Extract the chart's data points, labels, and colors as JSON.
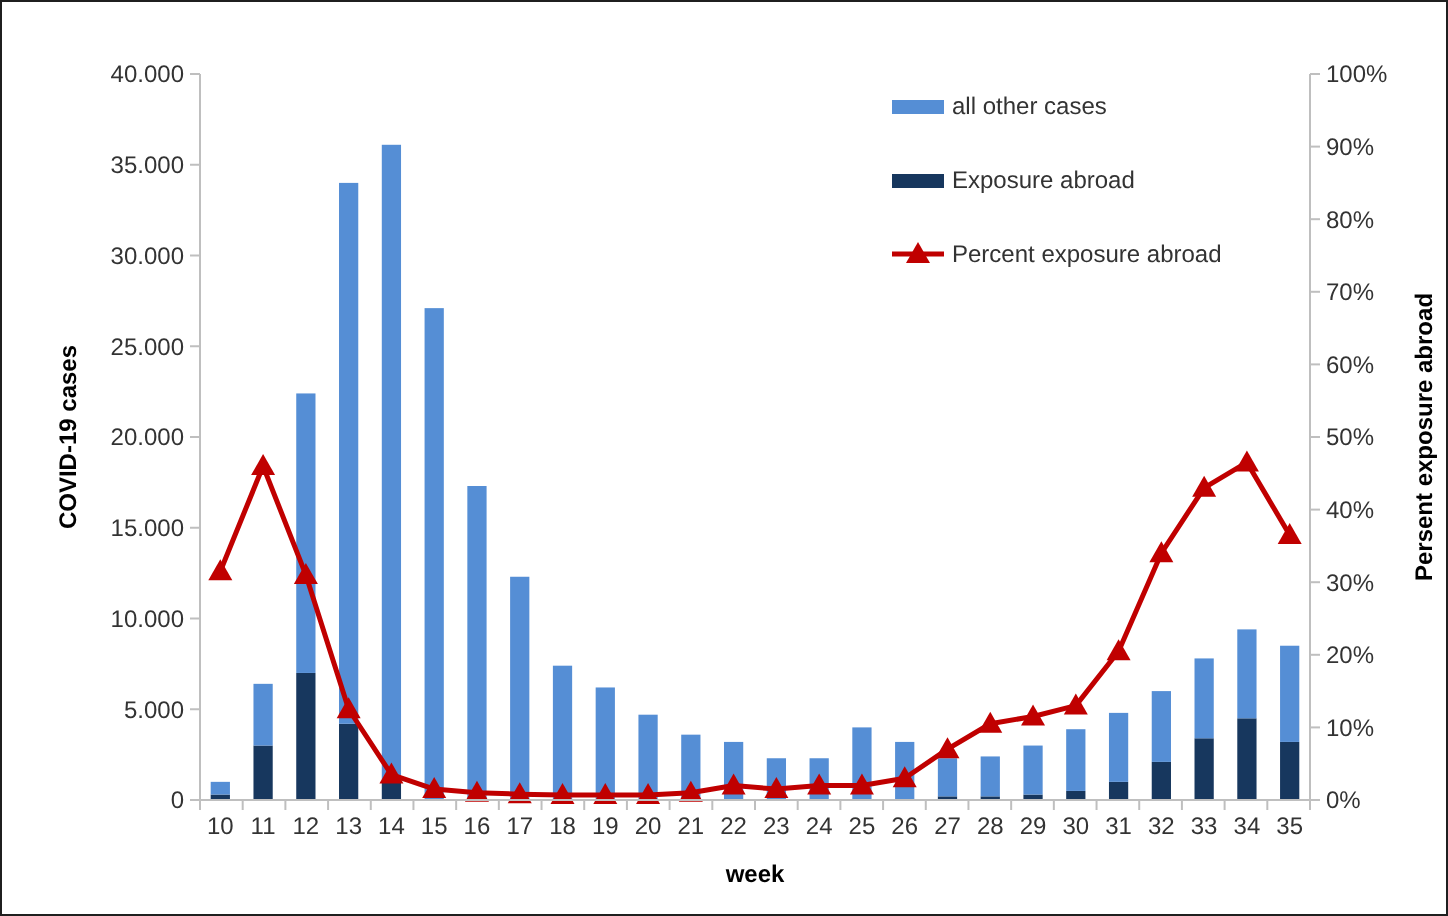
{
  "chart_data": {
    "type": "bar",
    "stacked": true,
    "xlabel": "week",
    "ylabel": "COVID-19 cases",
    "y2label": "Persent exposure abroad",
    "categories": [
      "10",
      "11",
      "12",
      "13",
      "14",
      "15",
      "16",
      "17",
      "18",
      "19",
      "20",
      "21",
      "22",
      "23",
      "24",
      "25",
      "26",
      "27",
      "28",
      "29",
      "30",
      "31",
      "32",
      "33",
      "34",
      "35"
    ],
    "series": [
      {
        "name": "Exposure abroad",
        "color": "#17375e",
        "values": [
          300,
          3000,
          7000,
          4200,
          1000,
          null,
          null,
          null,
          null,
          null,
          null,
          null,
          null,
          null,
          null,
          null,
          null,
          200,
          200,
          300,
          500,
          1000,
          2100,
          3400,
          4500,
          3200
        ]
      },
      {
        "name": "all other cases",
        "color": "#558ed5",
        "values": [
          700,
          3400,
          15400,
          29800,
          35100,
          27100,
          17300,
          12300,
          7400,
          6200,
          4700,
          3600,
          3200,
          2300,
          2300,
          4000,
          3200,
          2100,
          2200,
          2700,
          3400,
          3800,
          3900,
          4400,
          4900,
          5300
        ]
      },
      {
        "name": "Percent exposure abroad",
        "type": "line",
        "axis": "y2",
        "color": "#c00000",
        "marker": "triangle",
        "values": [
          31.5,
          46,
          31,
          12.5,
          3.5,
          1.5,
          1,
          0.8,
          0.7,
          0.7,
          0.7,
          1,
          2,
          1.5,
          2,
          2,
          3,
          7,
          10.5,
          11.5,
          13,
          20.5,
          34,
          43,
          46.5,
          36.5
        ]
      }
    ],
    "ylim": [
      0,
      40000
    ],
    "yticks": [
      0,
      {
        "value": 5000,
        "label": "5.000"
      },
      {
        "value": 10000,
        "label": "10.000"
      },
      {
        "value": 15000,
        "label": "15.000"
      },
      {
        "value": 20000,
        "label": "20.000"
      },
      {
        "value": 25000,
        "label": "25.000"
      },
      {
        "value": 30000,
        "label": "30.000"
      },
      {
        "value": 35000,
        "label": "35.000"
      },
      {
        "value": 40000,
        "label": "40.000"
      }
    ],
    "y2lim": [
      0,
      100
    ],
    "y2ticks": [
      {
        "value": 0,
        "label": "0%"
      },
      {
        "value": 10,
        "label": "10%"
      },
      {
        "value": 20,
        "label": "20%"
      },
      {
        "value": 30,
        "label": "30%"
      },
      {
        "value": 40,
        "label": "40%"
      },
      {
        "value": 50,
        "label": "50%"
      },
      {
        "value": 60,
        "label": "60%"
      },
      {
        "value": 70,
        "label": "70%"
      },
      {
        "value": 80,
        "label": "80%"
      },
      {
        "value": 90,
        "label": "90%"
      },
      {
        "value": 100,
        "label": "100%"
      }
    ],
    "legend": "top right",
    "grid": false
  }
}
